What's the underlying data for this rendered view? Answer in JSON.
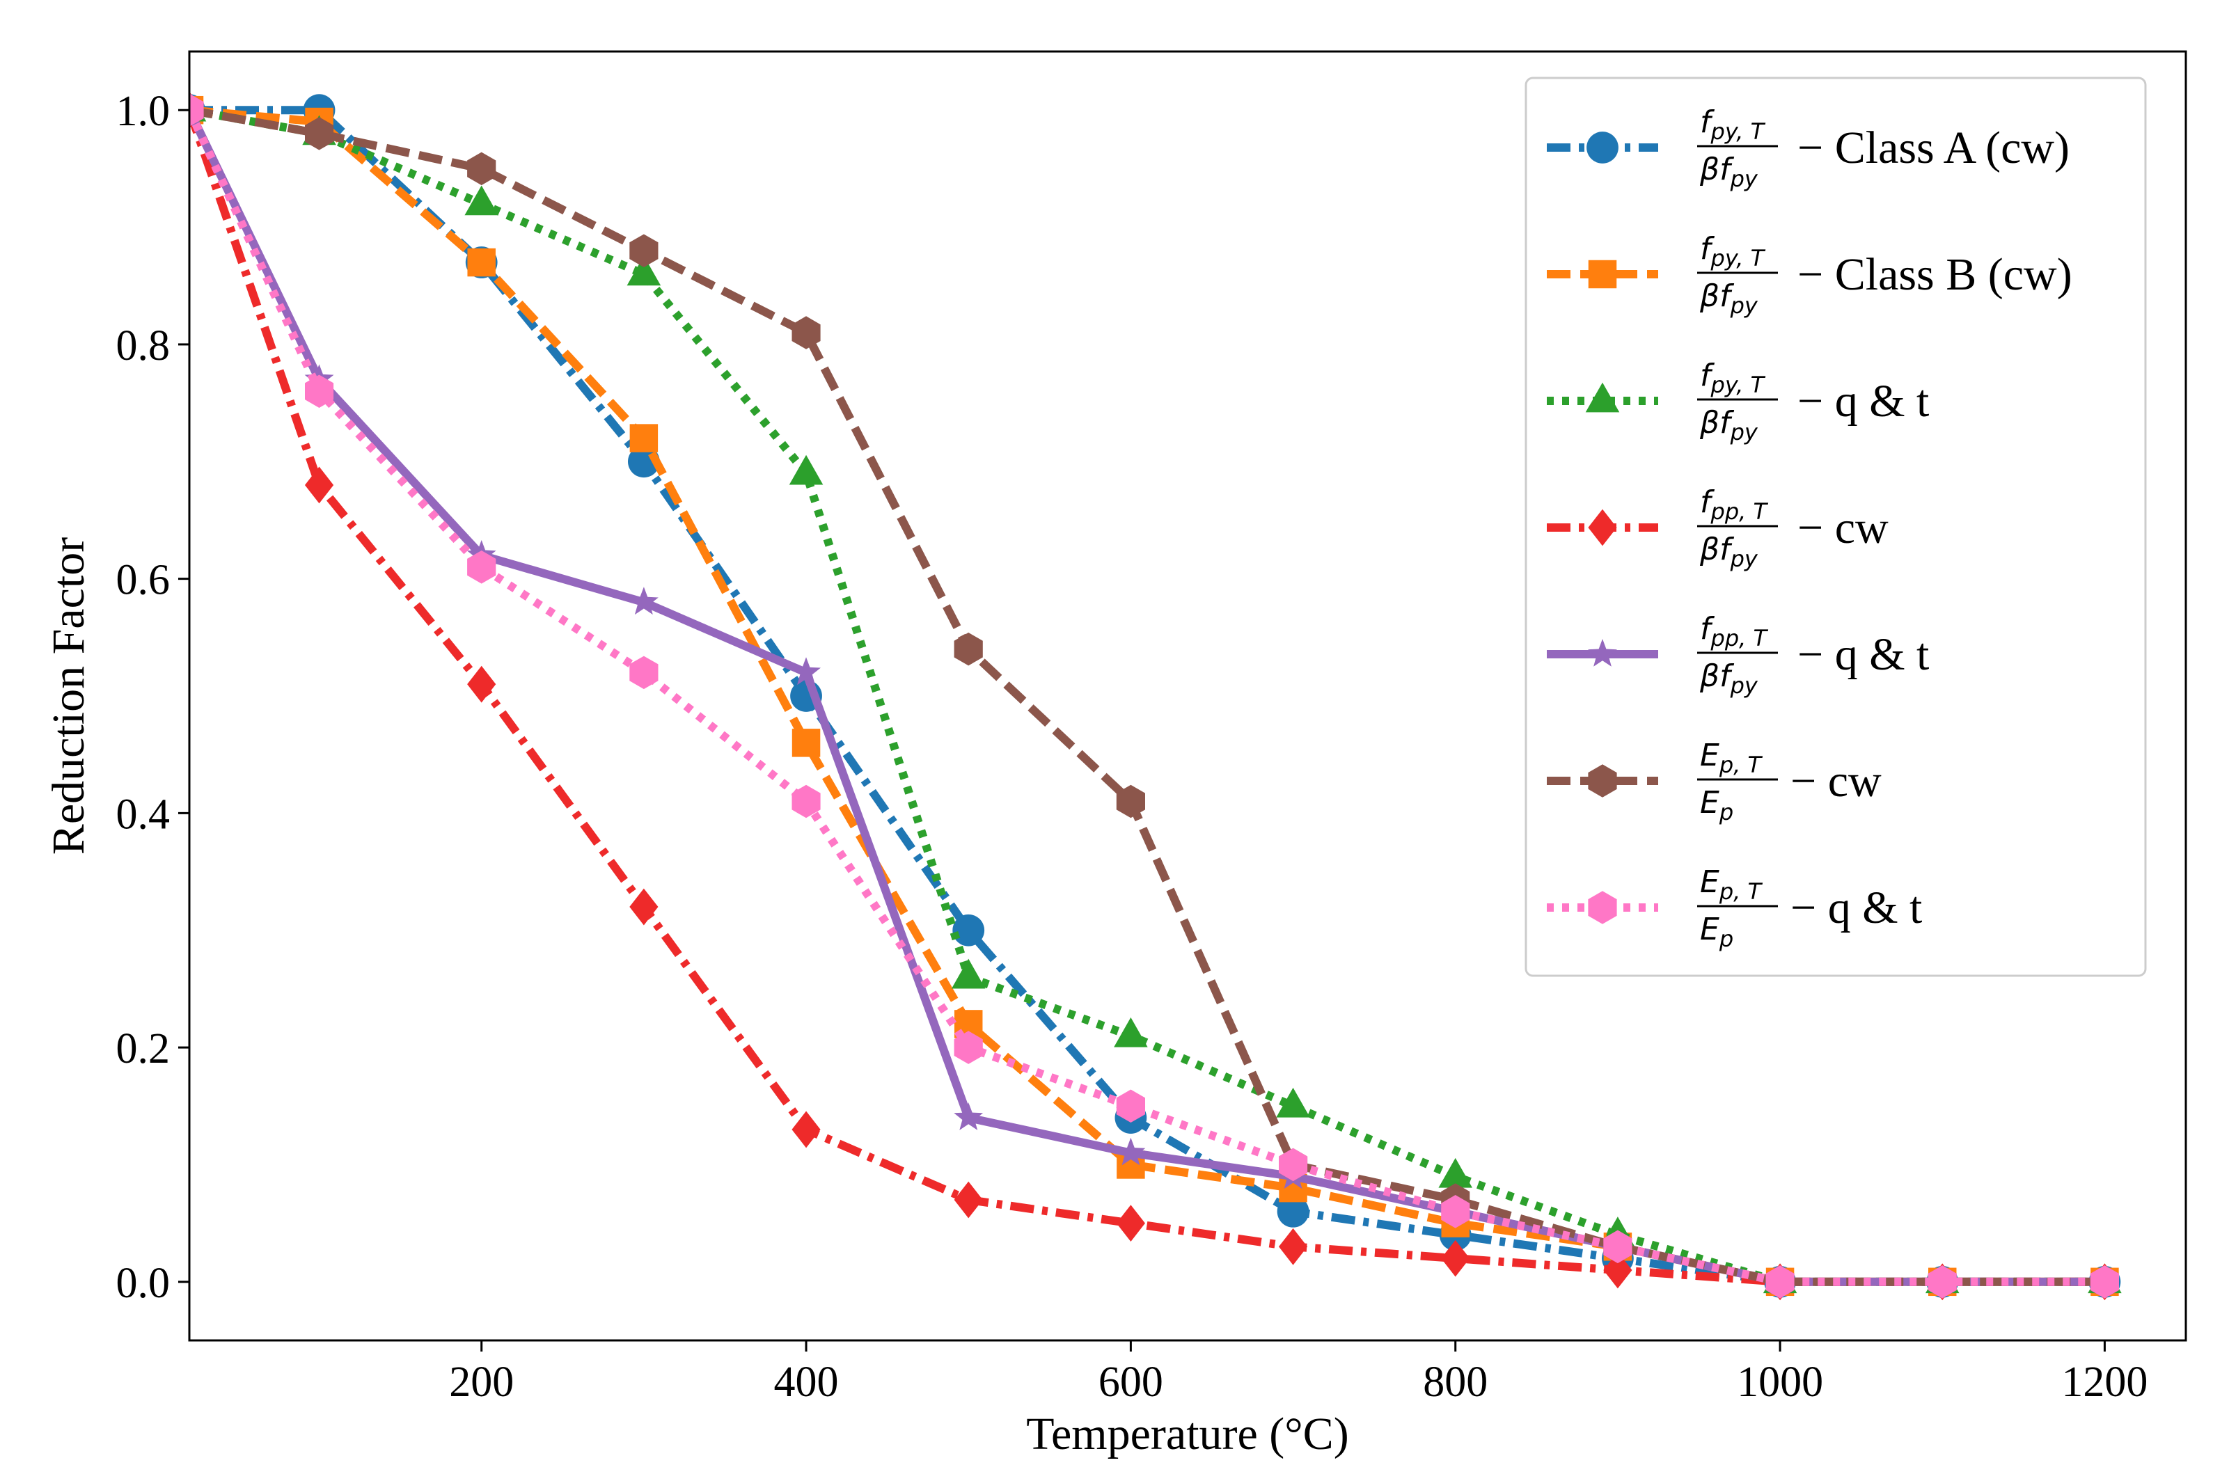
{
  "chart_data": {
    "type": "line",
    "title": "",
    "xlabel": "Temperature (°C)",
    "ylabel": "Reduction Factor",
    "xlim": [
      20,
      1250
    ],
    "ylim": [
      -0.05,
      1.05
    ],
    "xticks": [
      200,
      400,
      600,
      800,
      1000,
      1200
    ],
    "xtick_labels": [
      "200",
      "400",
      "600",
      "800",
      "1000",
      "1200"
    ],
    "yticks": [
      0.0,
      0.2,
      0.4,
      0.6,
      0.8,
      1.0
    ],
    "ytick_labels": [
      "0.0",
      "0.2",
      "0.4",
      "0.6",
      "0.8",
      "1.0"
    ],
    "grid": false,
    "legend_position": "top-right",
    "x": [
      20,
      100,
      200,
      300,
      400,
      500,
      600,
      700,
      800,
      900,
      1000,
      1100,
      1200
    ],
    "series": [
      {
        "name": "fpy,T/βfpy − Class A (cw)",
        "num": "f",
        "num_sub": "py, T",
        "den": "βf",
        "den_sub": "py",
        "suffix": "− Class A (cw)",
        "color": "#1f77b4",
        "dash": "dashdot",
        "marker": "circle",
        "values": [
          1.0,
          1.0,
          0.87,
          0.7,
          0.5,
          0.3,
          0.14,
          0.06,
          0.04,
          0.02,
          0.0,
          0.0,
          0.0
        ]
      },
      {
        "name": "fpy,T/βfpy − Class B (cw)",
        "num": "f",
        "num_sub": "py, T",
        "den": "βf",
        "den_sub": "py",
        "suffix": "− Class B (cw)",
        "color": "#ff7f0e",
        "dash": "dashed",
        "marker": "square",
        "values": [
          1.0,
          0.99,
          0.87,
          0.72,
          0.46,
          0.22,
          0.1,
          0.08,
          0.05,
          0.03,
          0.0,
          0.0,
          0.0
        ]
      },
      {
        "name": "fpy,T/βfpy − q & t",
        "num": "f",
        "num_sub": "py, T",
        "den": "βf",
        "den_sub": "py",
        "suffix": "− q & t",
        "color": "#2ca02c",
        "dash": "dotted",
        "marker": "triangle",
        "values": [
          1.0,
          0.98,
          0.92,
          0.86,
          0.69,
          0.26,
          0.21,
          0.15,
          0.09,
          0.04,
          0.0,
          0.0,
          0.0
        ]
      },
      {
        "name": "fpp,T/βfpy − cw",
        "num": "f",
        "num_sub": "pp, T",
        "den": "βf",
        "den_sub": "py",
        "suffix": "− cw",
        "color": "#ee2a2a",
        "dash": "dashdot",
        "marker": "diamond",
        "values": [
          1.0,
          0.68,
          0.51,
          0.32,
          0.13,
          0.07,
          0.05,
          0.03,
          0.02,
          0.01,
          0.0,
          0.0,
          0.0
        ]
      },
      {
        "name": "fpp,T/βfpy − q & t",
        "num": "f",
        "num_sub": "pp, T",
        "den": "βf",
        "den_sub": "py",
        "suffix": "− q & t",
        "color": "#9467bd",
        "dash": "solid",
        "marker": "star",
        "values": [
          1.0,
          0.77,
          0.62,
          0.58,
          0.52,
          0.14,
          0.11,
          0.09,
          0.06,
          0.03,
          0.0,
          0.0,
          0.0
        ]
      },
      {
        "name": "Ep,T/Ep − cw",
        "num": "E",
        "num_sub": "p, T",
        "den": "E",
        "den_sub": "p",
        "suffix": "− cw",
        "color": "#8c564b",
        "dash": "dashed",
        "marker": "hexagon",
        "values": [
          1.0,
          0.98,
          0.95,
          0.88,
          0.81,
          0.54,
          0.41,
          0.1,
          0.07,
          0.03,
          0.0,
          0.0,
          0.0
        ]
      },
      {
        "name": "Ep,T/Ep − q & t",
        "num": "E",
        "num_sub": "p, T",
        "den": "E",
        "den_sub": "p",
        "suffix": "− q & t",
        "color": "#ff77c6",
        "dash": "dotted",
        "marker": "hexagon",
        "values": [
          1.0,
          0.76,
          0.61,
          0.52,
          0.41,
          0.2,
          0.15,
          0.1,
          0.06,
          0.03,
          0.0,
          0.0,
          0.0
        ]
      }
    ]
  }
}
